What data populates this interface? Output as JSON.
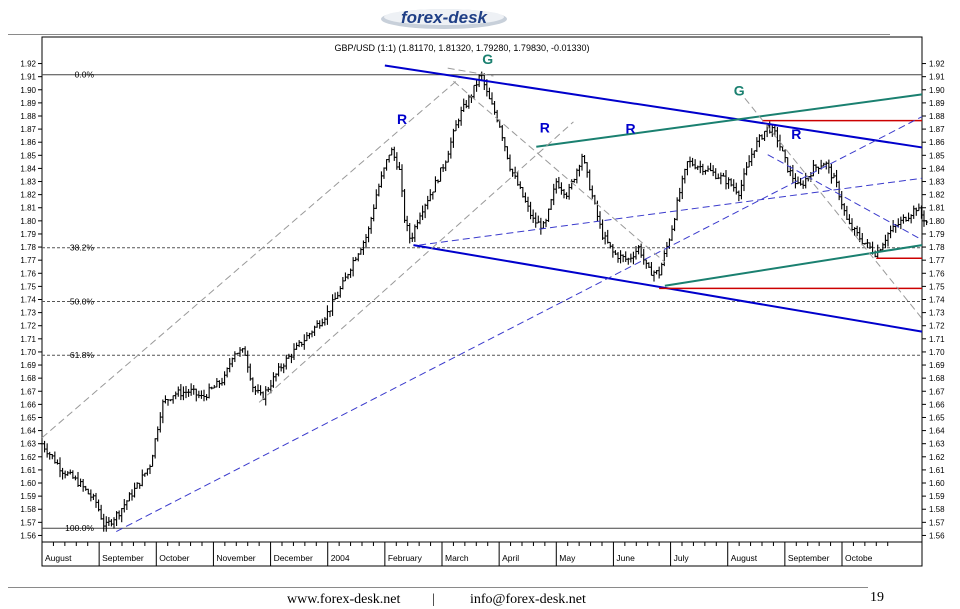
{
  "header": {
    "logo_text": "forex-desk"
  },
  "footer": {
    "website": "www.forex-desk.net",
    "separator": "|",
    "email": "info@forex-desk.net",
    "page_number": "19"
  },
  "chart_data": {
    "type": "candlestick",
    "title": "GBP/USD (1:1) (1.81170, 1.81320, 1.79280, 1.79830, -0.01330)",
    "y_ticks": [
      "1.92",
      "1.91",
      "1.90",
      "1.89",
      "1.88",
      "1.87",
      "1.86",
      "1.85",
      "1.84",
      "1.83",
      "1.82",
      "1.81",
      "1.80",
      "1.79",
      "1.78",
      "1.77",
      "1.76",
      "1.75",
      "1.74",
      "1.73",
      "1.72",
      "1.71",
      "1.70",
      "1.69",
      "1.68",
      "1.67",
      "1.66",
      "1.65",
      "1.64",
      "1.63",
      "1.62",
      "1.61",
      "1.60",
      "1.59",
      "1.58",
      "1.57",
      "1.56"
    ],
    "ylim": [
      1.555,
      1.925
    ],
    "x_labels": [
      "August",
      "September",
      "October",
      "November",
      "December",
      "2004",
      "February",
      "March",
      "April",
      "May",
      "June",
      "July",
      "August",
      "September",
      "Octobe"
    ],
    "fib_levels": [
      {
        "label": "0.0%",
        "value": 1.9115
      },
      {
        "label": "38.2%",
        "value": 1.7795
      },
      {
        "label": "50.0%",
        "value": 1.7385
      },
      {
        "label": "61.8%",
        "value": 1.6975
      },
      {
        "label": "100.0%",
        "value": 1.5655
      }
    ],
    "annotations": [
      {
        "label": "R",
        "x": 6.3,
        "y": 1.874
      },
      {
        "label": "G",
        "x": 7.8,
        "y": 1.9195
      },
      {
        "label": "R",
        "x": 8.8,
        "y": 1.8675
      },
      {
        "label": "R",
        "x": 10.3,
        "y": 1.8665
      },
      {
        "label": "G",
        "x": 12.2,
        "y": 1.8955
      },
      {
        "label": "R",
        "x": 13.2,
        "y": 1.8625
      }
    ],
    "price_path": [
      [
        0,
        1.63
      ],
      [
        0.35,
        1.61
      ],
      [
        0.65,
        1.6
      ],
      [
        0.95,
        1.585
      ],
      [
        1.1,
        1.566
      ],
      [
        1.35,
        1.578
      ],
      [
        1.7,
        1.6
      ],
      [
        1.9,
        1.615
      ],
      [
        2.1,
        1.66
      ],
      [
        2.3,
        1.668
      ],
      [
        2.6,
        1.67
      ],
      [
        2.8,
        1.665
      ],
      [
        3.2,
        1.68
      ],
      [
        3.35,
        1.7
      ],
      [
        3.55,
        1.7
      ],
      [
        3.7,
        1.672
      ],
      [
        3.85,
        1.665
      ],
      [
        4.2,
        1.69
      ],
      [
        4.6,
        1.71
      ],
      [
        5.0,
        1.73
      ],
      [
        5.25,
        1.75
      ],
      [
        5.45,
        1.77
      ],
      [
        5.55,
        1.778
      ],
      [
        5.7,
        1.79
      ],
      [
        5.85,
        1.82
      ],
      [
        6.1,
        1.855
      ],
      [
        6.25,
        1.84
      ],
      [
        6.35,
        1.8
      ],
      [
        6.45,
        1.785
      ],
      [
        6.6,
        1.805
      ],
      [
        6.85,
        1.825
      ],
      [
        7.05,
        1.845
      ],
      [
        7.3,
        1.88
      ],
      [
        7.5,
        1.895
      ],
      [
        7.68,
        1.912
      ],
      [
        7.8,
        1.895
      ],
      [
        8.0,
        1.875
      ],
      [
        8.2,
        1.84
      ],
      [
        8.4,
        1.82
      ],
      [
        8.6,
        1.8
      ],
      [
        8.8,
        1.795
      ],
      [
        9.0,
        1.83
      ],
      [
        9.2,
        1.82
      ],
      [
        9.45,
        1.85
      ],
      [
        9.65,
        1.815
      ],
      [
        9.8,
        1.79
      ],
      [
        10.0,
        1.775
      ],
      [
        10.25,
        1.77
      ],
      [
        10.45,
        1.78
      ],
      [
        10.6,
        1.762
      ],
      [
        10.8,
        1.76
      ],
      [
        11.0,
        1.79
      ],
      [
        11.15,
        1.82
      ],
      [
        11.3,
        1.845
      ],
      [
        11.6,
        1.84
      ],
      [
        12.0,
        1.83
      ],
      [
        12.2,
        1.822
      ],
      [
        12.45,
        1.855
      ],
      [
        12.7,
        1.872
      ],
      [
        12.85,
        1.865
      ],
      [
        13.05,
        1.84
      ],
      [
        13.25,
        1.825
      ],
      [
        13.5,
        1.84
      ],
      [
        13.7,
        1.845
      ],
      [
        13.9,
        1.828
      ],
      [
        14.1,
        1.798
      ],
      [
        14.35,
        1.785
      ],
      [
        14.6,
        1.775
      ],
      [
        14.8,
        1.79
      ],
      [
        15.05,
        1.8
      ],
      [
        15.3,
        1.81
      ],
      [
        15.5,
        1.798
      ]
    ],
    "lines": [
      {
        "style": "solid",
        "color": "#0000cc",
        "width": 2,
        "from": [
          6.0,
          1.9185
        ],
        "to": [
          16.8,
          1.856
        ]
      },
      {
        "style": "solid",
        "color": "#0000cc",
        "width": 2,
        "from": [
          6.5,
          1.7815
        ],
        "to": [
          16.8,
          1.7155
        ]
      },
      {
        "style": "solid",
        "color": "#1a8070",
        "width": 2,
        "from": [
          8.65,
          1.8565
        ],
        "to": [
          16.8,
          1.8965
        ]
      },
      {
        "style": "solid",
        "color": "#1a8070",
        "width": 2,
        "from": [
          10.9,
          1.7505
        ],
        "to": [
          16.8,
          1.7815
        ]
      },
      {
        "style": "solid",
        "color": "#cc0000",
        "width": 1.5,
        "from": [
          12.6,
          1.8765
        ],
        "to": [
          16.8,
          1.8765
        ]
      },
      {
        "style": "solid",
        "color": "#cc0000",
        "width": 1.5,
        "from": [
          10.8,
          1.7485
        ],
        "to": [
          16.8,
          1.7485
        ]
      },
      {
        "style": "solid",
        "color": "#cc0000",
        "width": 1.5,
        "from": [
          14.6,
          1.7715
        ],
        "to": [
          16.8,
          1.7715
        ]
      },
      {
        "style": "dashed",
        "color": "#3a3acc",
        "width": 1,
        "from": [
          1.3,
          1.563
        ],
        "to": [
          16.8,
          1.8795
        ]
      },
      {
        "style": "dashed",
        "color": "#3a3acc",
        "width": 1,
        "from": [
          6.6,
          1.7815
        ],
        "to": [
          16.8,
          1.8325
        ]
      },
      {
        "style": "dashed",
        "color": "#3a3acc",
        "width": 1,
        "from": [
          12.7,
          1.8505
        ],
        "to": [
          16.8,
          1.7855
        ]
      },
      {
        "style": "dashed",
        "color": "#999999",
        "width": 1,
        "from": [
          0,
          1.6345
        ],
        "to": [
          7.3,
          1.9085
        ]
      },
      {
        "style": "dashed",
        "color": "#999999",
        "width": 1,
        "from": [
          3.8,
          1.6615
        ],
        "to": [
          9.3,
          1.8755
        ]
      },
      {
        "style": "dashed",
        "color": "#999999",
        "width": 1,
        "from": [
          7.2,
          1.9065
        ],
        "to": [
          10.9,
          1.7685
        ]
      },
      {
        "style": "dashed",
        "color": "#999999",
        "width": 1,
        "from": [
          12.3,
          1.8935
        ],
        "to": [
          16.8,
          1.7255
        ]
      },
      {
        "style": "dashed",
        "color": "#999999",
        "width": 1,
        "from": [
          7.1,
          1.9165
        ],
        "to": [
          7.9,
          1.9105
        ]
      }
    ]
  }
}
